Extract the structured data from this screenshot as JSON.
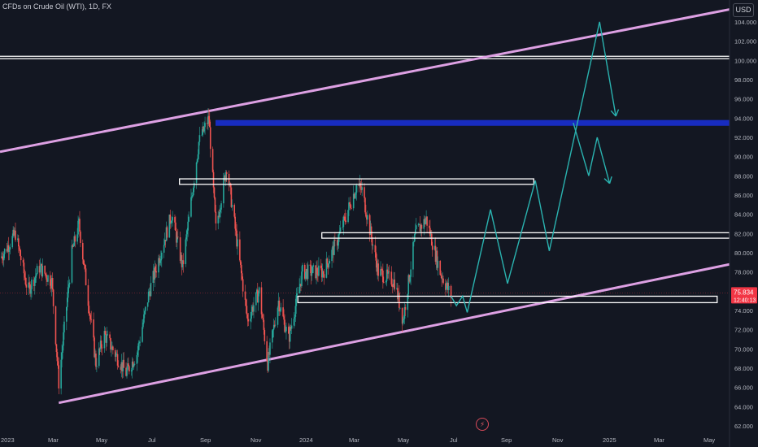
{
  "header": {
    "title": "CFDs on Crude Oil (WTI), 1D, FX",
    "currency_button": "USD"
  },
  "colors": {
    "background": "#131722",
    "up": "#26a69a",
    "down": "#ef5350",
    "channel": "#dda0e3",
    "projection": "#2ab3b0",
    "zone": "#1a2fd0",
    "level_box": "#ffffff",
    "current_price": "#f23645"
  },
  "chart_data": {
    "type": "candlestick",
    "title": "CFDs on Crude Oil (WTI), 1D, FX",
    "xlabel": "",
    "ylabel": "",
    "x_ticks": [
      "2023",
      "Mar",
      "May",
      "Jul",
      "Sep",
      "Nov",
      "2024",
      "Mar",
      "May",
      "Jul",
      "Sep",
      "Nov",
      "2025",
      "Mar",
      "May"
    ],
    "y_ticks": [
      62,
      64,
      66,
      68,
      70,
      72,
      74,
      76,
      78,
      80,
      82,
      84,
      86,
      88,
      90,
      92,
      94,
      96,
      98,
      100,
      102,
      104
    ],
    "y_tick_labels": [
      "62.000",
      "64.000",
      "66.000",
      "68.000",
      "70.000",
      "72.000",
      "74.000",
      "76.000",
      "78.000",
      "80.000",
      "82.000",
      "84.000",
      "86.000",
      "88.000",
      "90.000",
      "92.000",
      "94.000",
      "96.000",
      "98.000",
      "100.000",
      "102.000",
      "104.000"
    ],
    "ylim": [
      61.5,
      105.6
    ],
    "grid": false,
    "price_path": [
      [
        "2023-01-01",
        79.5
      ],
      [
        "2023-01-20",
        82.0
      ],
      [
        "2023-02-05",
        76.0
      ],
      [
        "2023-02-20",
        78.5
      ],
      [
        "2023-03-08",
        77.0
      ],
      [
        "2023-03-17",
        66.5
      ],
      [
        "2023-04-03",
        80.0
      ],
      [
        "2023-04-12",
        83.0
      ],
      [
        "2023-05-04",
        68.5
      ],
      [
        "2023-05-15",
        71.5
      ],
      [
        "2023-06-12",
        67.5
      ],
      [
        "2023-06-26",
        69.5
      ],
      [
        "2023-07-12",
        76.0
      ],
      [
        "2023-08-10",
        84.0
      ],
      [
        "2023-08-24",
        78.5
      ],
      [
        "2023-09-14",
        91.5
      ],
      [
        "2023-09-27",
        94.0
      ],
      [
        "2023-10-06",
        82.5
      ],
      [
        "2023-10-20",
        89.0
      ],
      [
        "2023-11-16",
        73.0
      ],
      [
        "2023-12-01",
        76.0
      ],
      [
        "2023-12-12",
        68.5
      ],
      [
        "2023-12-26",
        75.0
      ],
      [
        "2024-01-08",
        71.0
      ],
      [
        "2024-01-26",
        78.0
      ],
      [
        "2024-02-22",
        78.0
      ],
      [
        "2024-03-12",
        81.5
      ],
      [
        "2024-04-05",
        87.0
      ],
      [
        "2024-04-12",
        86.5
      ],
      [
        "2024-05-03",
        78.0
      ],
      [
        "2024-05-24",
        77.0
      ],
      [
        "2024-06-04",
        73.0
      ],
      [
        "2024-06-20",
        82.0
      ],
      [
        "2024-07-04",
        83.5
      ],
      [
        "2024-07-22",
        78.0
      ],
      [
        "2024-08-05",
        75.5
      ]
    ],
    "annotations": {
      "current_price": 75.834,
      "countdown": "12:40:13",
      "resistance_lines": [
        100.3
      ],
      "supply_zone": [
        93.2,
        93.8
      ],
      "level_boxes": [
        {
          "from": "2023-08-20",
          "to": "2024-11-20",
          "low": 87.2,
          "high": 87.6
        },
        {
          "from": "2024-02-20",
          "to": "2025-07-31",
          "low": 81.6,
          "high": 82.0
        },
        {
          "from": "2024-01-20",
          "to": "2025-07-15",
          "low": 74.9,
          "high": 75.4
        }
      ],
      "channel_upper": [
        [
          "2022-12-31",
          90.5
        ],
        [
          "2025-07-31",
          105.3
        ]
      ],
      "channel_lower": [
        [
          "2023-03-17",
          64.4
        ],
        [
          "2025-07-31",
          78.8
        ]
      ],
      "projection": [
        [
          "2024-08-05",
          75.5
        ],
        [
          "2024-08-12",
          74.5
        ],
        [
          "2024-08-20",
          75.5
        ],
        [
          "2024-08-26",
          73.8
        ],
        [
          "2024-09-25",
          84.5
        ],
        [
          "2024-10-17",
          76.8
        ],
        [
          "2024-11-22",
          87.5
        ],
        [
          "2024-12-10",
          80.2
        ],
        [
          "2025-02-13",
          104.0
        ],
        [
          "2025-03-06",
          94.2
        ]
      ],
      "projection_alt": [
        [
          "2025-01-10",
          93.5
        ],
        [
          "2025-01-30",
          88.0
        ],
        [
          "2025-02-10",
          92.0
        ],
        [
          "2025-02-26",
          87.2
        ]
      ]
    }
  }
}
